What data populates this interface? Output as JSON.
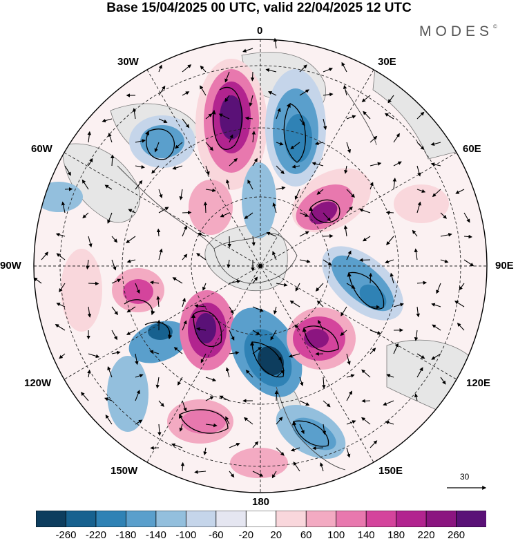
{
  "title": "Base 15/04/2025 00 UTC, valid 22/04/2025 12 UTC",
  "brand": "MODES",
  "brand_mark": "©",
  "longitude_labels": {
    "top": "0",
    "top_left": "30W",
    "top_right": "30E",
    "left_upper": "60W",
    "right_upper": "60E",
    "left": "90W",
    "right": "90E",
    "left_lower": "120W",
    "right_lower": "120E",
    "bottom_left": "150W",
    "bottom_right": "150E",
    "bottom": "180"
  },
  "reference_vector_label": "30",
  "colorbar": {
    "ticks": [
      "-260",
      "-220",
      "-180",
      "-140",
      "-100",
      "-60",
      "-20",
      "20",
      "60",
      "100",
      "140",
      "180",
      "220",
      "260"
    ],
    "colors": [
      "#0d3d5e",
      "#17618f",
      "#2f82b5",
      "#5a9fcc",
      "#93bfdd",
      "#c5d5ea",
      "#e5e6f1",
      "#ffffff",
      "#f9d7dc",
      "#f3aac2",
      "#e878ae",
      "#d4449c",
      "#b2248f",
      "#8b1580",
      "#5a1177"
    ]
  },
  "map_colors": {
    "land": "#e9e9e9",
    "neg_strong": "#2f82b5",
    "neg_mid": "#5a9fcc",
    "neg_light": "#c5d5ea",
    "pos_strong": "#b2248f",
    "pos_mid": "#e878ae",
    "pos_light": "#f9d7dc",
    "darkest_neg": "#17618f",
    "darkest_pos": "#5a1177"
  }
}
